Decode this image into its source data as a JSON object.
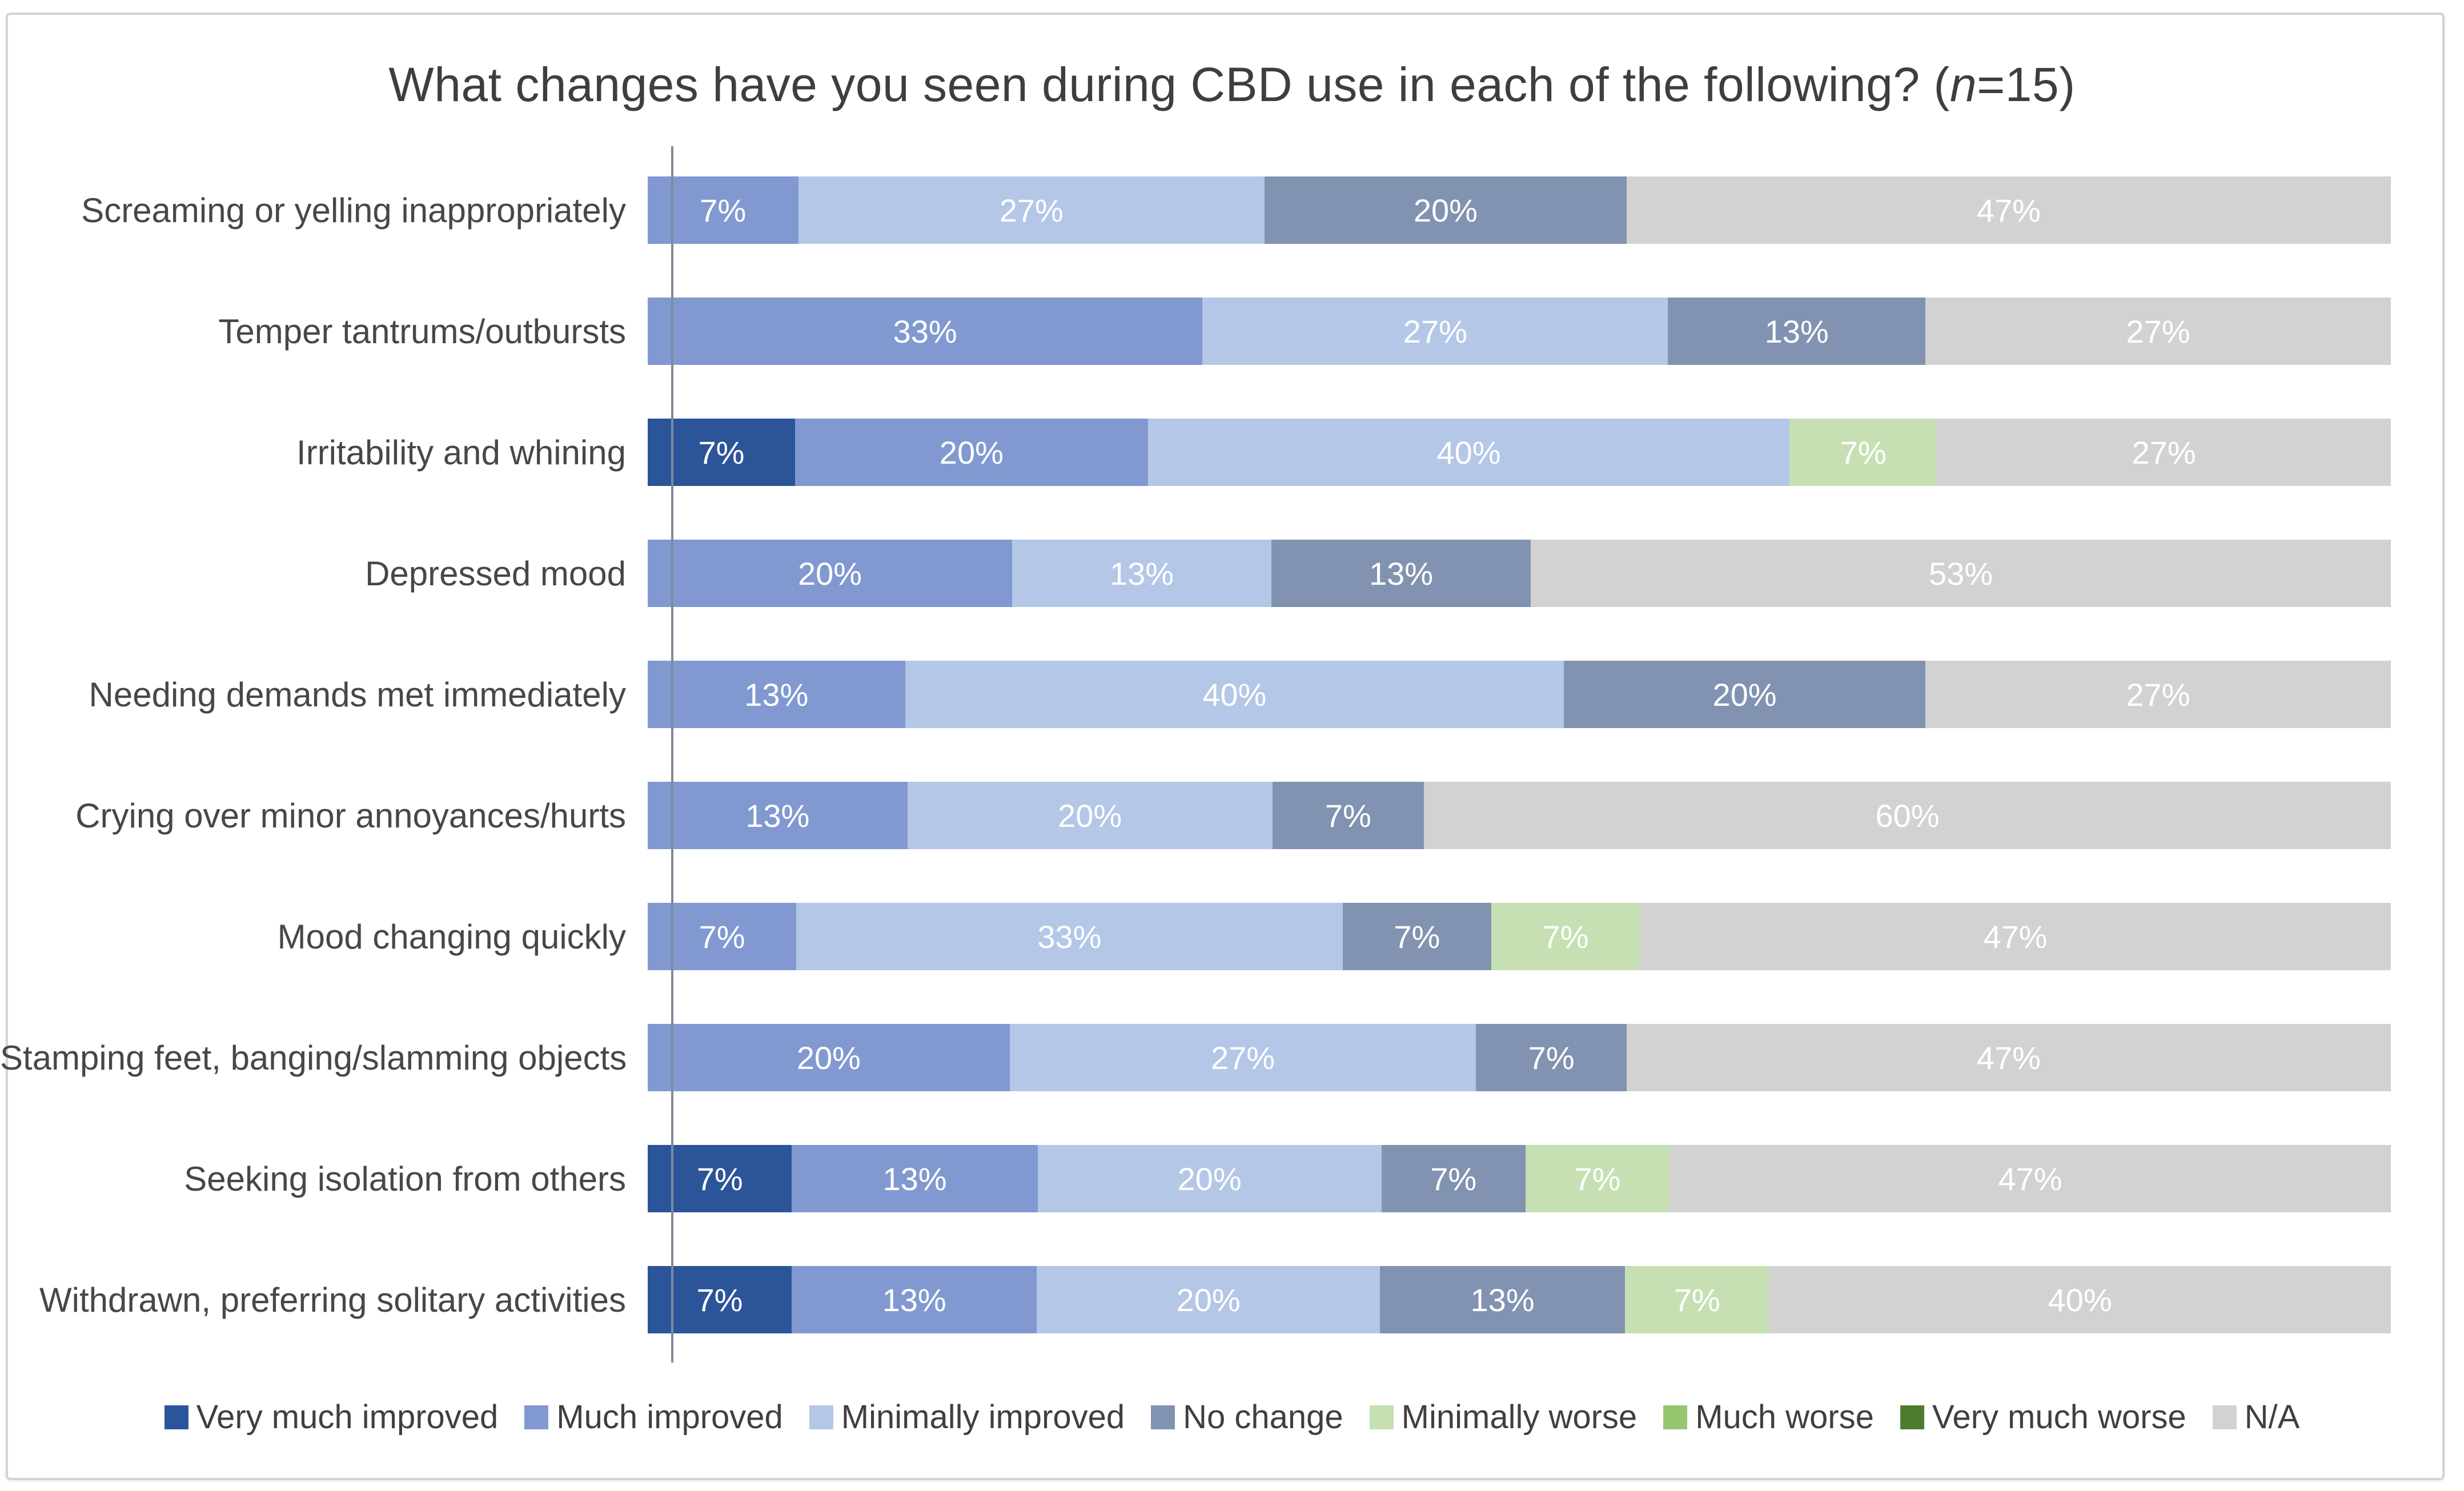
{
  "title": {
    "prefix": "What changes have you seen during CBD use in each of the following? (",
    "n": "n",
    "suffix": "=15)"
  },
  "chart_data": {
    "type": "bar",
    "stacked": true,
    "orientation": "horizontal",
    "unit": "percent",
    "sample_size_label": "n=15",
    "title": "What changes have you seen during CBD use in each of the following? (n=15)",
    "legend_position": "bottom",
    "grid": false,
    "xlim": [
      0,
      100
    ],
    "series": [
      {
        "name": "Very much improved",
        "color": "#2c5499"
      },
      {
        "name": "Much improved",
        "color": "#8199d0"
      },
      {
        "name": "Minimally improved",
        "color": "#b4c7e7"
      },
      {
        "name": "No change",
        "color": "#8193b0"
      },
      {
        "name": "Minimally worse",
        "color": "#c6e0b4"
      },
      {
        "name": "Much worse",
        "color": "#97c670"
      },
      {
        "name": "Very much worse",
        "color": "#4e7c2f"
      },
      {
        "name": "N/A",
        "color": "#d2d2d2"
      }
    ],
    "categories": [
      "Screaming or yelling inappropriately",
      "Temper tantrums/outbursts",
      "Irritability and whining",
      "Depressed mood",
      "Needing demands met immediately",
      "Crying over minor annoyances/hurts",
      "Mood changing quickly",
      "Stamping feet, banging/slamming objects",
      "Seeking isolation from others",
      "Withdrawn, preferring solitary activities"
    ],
    "rows": [
      {
        "category": "Screaming or yelling inappropriately",
        "segments": [
          {
            "series": "Much improved",
            "label": "7%",
            "value": 7
          },
          {
            "series": "Minimally improved",
            "label": "27%",
            "value": 27
          },
          {
            "series": "No change",
            "label": "20%",
            "value": 20
          },
          {
            "series": "N/A",
            "label": "47%",
            "value": 47
          }
        ]
      },
      {
        "category": "Temper tantrums/outbursts",
        "segments": [
          {
            "series": "Much improved",
            "label": "33%",
            "value": 33
          },
          {
            "series": "Minimally improved",
            "label": "27%",
            "value": 27
          },
          {
            "series": "No change",
            "label": "13%",
            "value": 13
          },
          {
            "series": "N/A",
            "label": "27%",
            "value": 27
          }
        ]
      },
      {
        "category": "Irritability and whining",
        "segments": [
          {
            "series": "Very much improved",
            "label": "7%",
            "value": 7
          },
          {
            "series": "Much improved",
            "label": "20%",
            "value": 20
          },
          {
            "series": "Minimally improved",
            "label": "40%",
            "value": 40
          },
          {
            "series": "Minimally worse",
            "label": "7%",
            "value": 7
          },
          {
            "series": "N/A",
            "label": "27%",
            "value": 27
          }
        ]
      },
      {
        "category": "Depressed mood",
        "segments": [
          {
            "series": "Much improved",
            "label": "20%",
            "value": 20
          },
          {
            "series": "Minimally improved",
            "label": "13%",
            "value": 13
          },
          {
            "series": "No change",
            "label": "13%",
            "value": 13
          },
          {
            "series": "N/A",
            "label": "53%",
            "value": 53
          }
        ]
      },
      {
        "category": "Needing demands met immediately",
        "segments": [
          {
            "series": "Much improved",
            "label": "13%",
            "value": 13
          },
          {
            "series": "Minimally improved",
            "label": "40%",
            "value": 40
          },
          {
            "series": "No change",
            "label": "20%",
            "value": 20
          },
          {
            "series": "N/A",
            "label": "27%",
            "value": 27
          }
        ]
      },
      {
        "category": "Crying over minor annoyances/hurts",
        "segments": [
          {
            "series": "Much improved",
            "label": "13%",
            "value": 13
          },
          {
            "series": "Minimally improved",
            "label": "20%",
            "value": 20
          },
          {
            "series": "No change",
            "label": "7%",
            "value": 7
          },
          {
            "series": "N/A",
            "label": "60%",
            "value": 60
          }
        ]
      },
      {
        "category": "Mood changing quickly",
        "segments": [
          {
            "series": "Much improved",
            "label": "7%",
            "value": 7
          },
          {
            "series": "Minimally improved",
            "label": "33%",
            "value": 33
          },
          {
            "series": "No change",
            "label": "7%",
            "value": 7
          },
          {
            "series": "Minimally worse",
            "label": "7%",
            "value": 7
          },
          {
            "series": "N/A",
            "label": "47%",
            "value": 47
          }
        ]
      },
      {
        "category": "Stamping feet, banging/slamming objects",
        "segments": [
          {
            "series": "Much improved",
            "label": "20%",
            "value": 20
          },
          {
            "series": "Minimally improved",
            "label": "27%",
            "value": 27
          },
          {
            "series": "No change",
            "label": "7%",
            "value": 7
          },
          {
            "series": "N/A",
            "label": "47%",
            "value": 47
          }
        ]
      },
      {
        "category": "Seeking isolation from others",
        "segments": [
          {
            "series": "Very much improved",
            "label": "7%",
            "value": 7
          },
          {
            "series": "Much improved",
            "label": "13%",
            "value": 13
          },
          {
            "series": "Minimally improved",
            "label": "20%",
            "value": 20
          },
          {
            "series": "No change",
            "label": "7%",
            "value": 7
          },
          {
            "series": "Minimally worse",
            "label": "7%",
            "value": 7
          },
          {
            "series": "N/A",
            "label": "47%",
            "value": 47
          }
        ]
      },
      {
        "category": "Withdrawn, preferring solitary activities",
        "segments": [
          {
            "series": "Very much improved",
            "label": "7%",
            "value": 7
          },
          {
            "series": "Much improved",
            "label": "13%",
            "value": 13
          },
          {
            "series": "Minimally improved",
            "label": "20%",
            "value": 20
          },
          {
            "series": "No change",
            "label": "13%",
            "value": 13
          },
          {
            "series": "Minimally worse",
            "label": "7%",
            "value": 7
          },
          {
            "series": "N/A",
            "label": "40%",
            "value": 40
          }
        ]
      }
    ]
  }
}
